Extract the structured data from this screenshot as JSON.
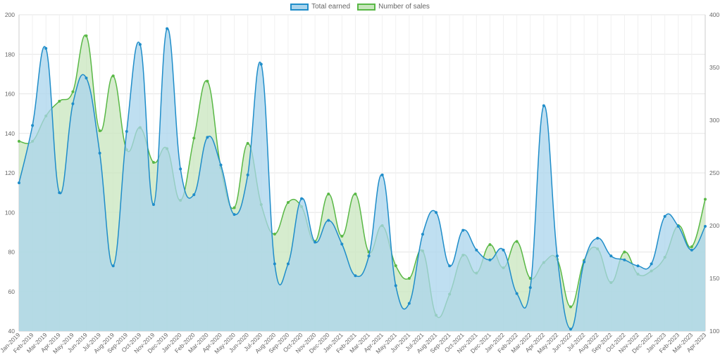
{
  "chart_data": {
    "type": "area",
    "title": "",
    "xlabel": "",
    "ylabel": "",
    "grid": true,
    "legend_position": "top-center",
    "categories": [
      "Jan-2019",
      "Feb-2019",
      "Mar-2019",
      "Apr-2019",
      "May-2019",
      "Jun-2019",
      "Jul-2019",
      "Aug-2019",
      "Sep-2019",
      "Oct-2019",
      "Nov-2019",
      "Dec-2019",
      "Jan-2020",
      "Feb-2020",
      "Mar-2020",
      "Apr-2020",
      "May-2020",
      "Jun-2020",
      "Jul-2020",
      "Aug-2020",
      "Sep-2020",
      "Oct-2020",
      "Nov-2020",
      "Dec-2020",
      "Jan-2021",
      "Feb-2021",
      "Mar-2021",
      "Apr-2021",
      "May-2021",
      "Jun-2021",
      "Jul-2021",
      "Aug-2021",
      "Sep-2021",
      "Oct-2021",
      "Nov-2021",
      "Dec-2021",
      "Jan-2022",
      "Feb-2022",
      "Mar-2022",
      "Apr-2022",
      "May-2022",
      "Jun-2022",
      "Jul-2022",
      "Aug-2022",
      "Sep-2022",
      "Oct-2022",
      "Nov-2022",
      "Dec-2022",
      "Jan-2023",
      "Feb-2023",
      "Mar-2023",
      "Apr-2023"
    ],
    "y_left": {
      "min": 40,
      "max": 200,
      "step": 20
    },
    "y_right": {
      "min": 100,
      "max": 400,
      "step": 50
    },
    "series": [
      {
        "name": "Total earned",
        "axis": "left",
        "stroke": "#1f8dc9",
        "fill": "#a9d4ec",
        "values": [
          115,
          144,
          183,
          110,
          155,
          168,
          130,
          73,
          141,
          185,
          104,
          193,
          122,
          109,
          138,
          124,
          99,
          119,
          175,
          74,
          74,
          107,
          85,
          96,
          84,
          68,
          78,
          119,
          63,
          54,
          89,
          100,
          73,
          91,
          81,
          76,
          81,
          59,
          62,
          154,
          78,
          41,
          75,
          87,
          78,
          76,
          73,
          74,
          98,
          93,
          81,
          93
        ]
      },
      {
        "name": "Number of sales",
        "axis": "right",
        "stroke": "#59b846",
        "fill": "#c8e6bd",
        "values": [
          280,
          280,
          304,
          318,
          327,
          380,
          290,
          342,
          272,
          293,
          260,
          273,
          224,
          283,
          337,
          255,
          217,
          278,
          220,
          192,
          222,
          218,
          185,
          230,
          190,
          230,
          175,
          200,
          162,
          150,
          176,
          115,
          135,
          172,
          155,
          182,
          160,
          185,
          150,
          165,
          168,
          123,
          167,
          178,
          146,
          175,
          154,
          157,
          170,
          200,
          180,
          225
        ]
      }
    ]
  }
}
